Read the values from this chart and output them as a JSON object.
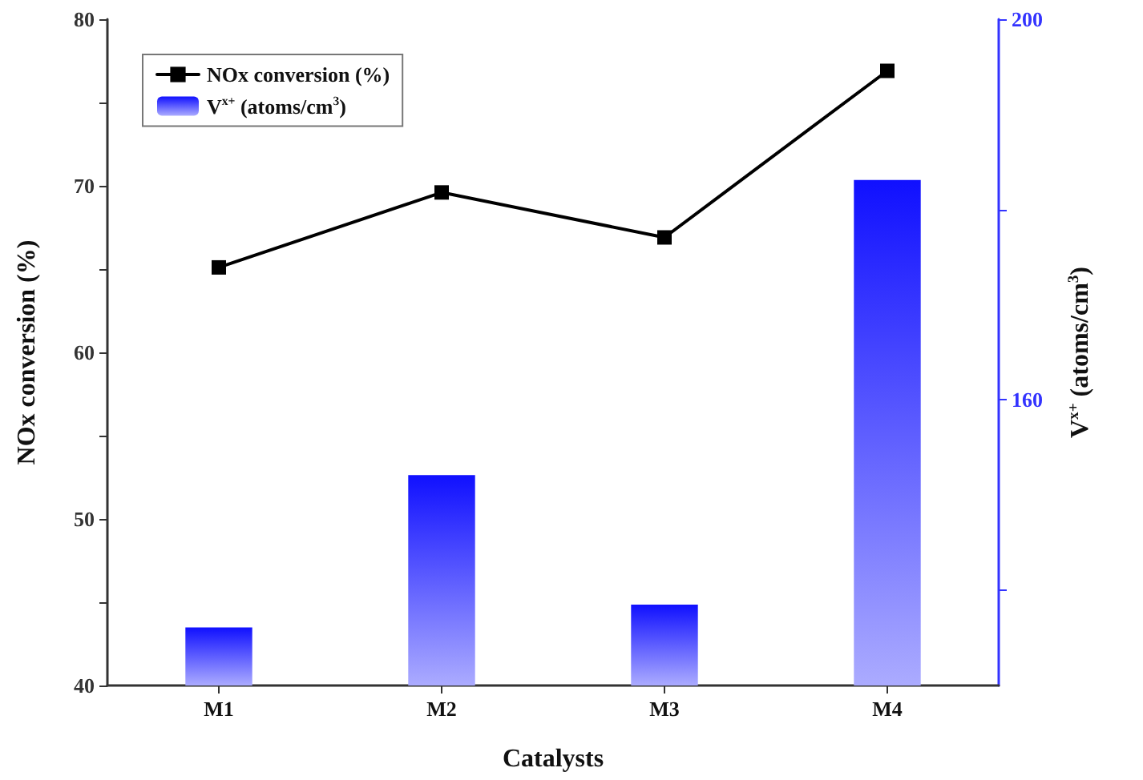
{
  "chart_data": {
    "type": "line",
    "xlabel": "Catalysts",
    "ylabel": "NOx conversion (%)",
    "y2label": "V$^{x+}$ (atoms/cm$^{3}$)",
    "categories": [
      "M1",
      "M2",
      "M3",
      "M4"
    ],
    "series": [
      {
        "name": "NOx conversion (%)",
        "color": "#000000",
        "values": [
          65.1,
          69.6,
          66.9,
          76.9
        ]
      },
      {
        "name": "V$^{x+}$ (atoms/cm$^{3}$)",
        "type": "bar",
        "axis": "y2",
        "color": "#1010ff",
        "values": [
          136.1,
          152.1,
          138.5,
          183.1
        ]
      }
    ],
    "ylim": [
      40,
      80
    ],
    "yticks": [
      40,
      {
        "value": 45,
        "label": null
      },
      50,
      {
        "value": 55,
        "label": null
      },
      60,
      {
        "value": 65,
        "label": null
      },
      70,
      {
        "value": 75,
        "label": null
      },
      80
    ],
    "y2lim": [
      130,
      200
    ],
    "y2ticks": [
      {
        "value": 140,
        "label": null
      },
      160,
      {
        "value": 180,
        "label": null
      },
      200
    ],
    "legend": "top left",
    "marker": "square",
    "line_style": "solid",
    "grid": false
  }
}
